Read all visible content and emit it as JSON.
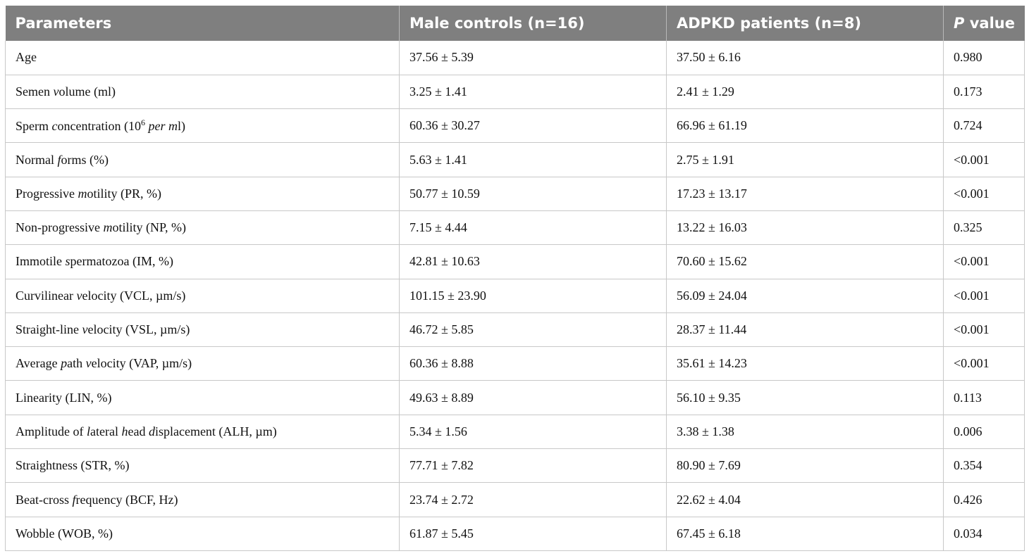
{
  "table": {
    "headers": [
      "Parameters",
      "Male controls (n=16)",
      "ADPKD patients (n=8)",
      "value"
    ],
    "p_header_italic": "P",
    "rows": [
      {
        "parameter": [
          "Age"
        ],
        "controls": "37.56 ± 5.39",
        "patients": "37.50 ± 6.16",
        "p": "0.980"
      },
      {
        "parameter": [
          "Semen ",
          "v",
          "olume (ml)"
        ],
        "controls": "3.25 ± 1.41",
        "patients": "2.41 ± 1.29",
        "p": "0.173"
      },
      {
        "parameter": [
          "Sperm ",
          "c",
          "oncentration (10",
          "6",
          " ",
          "per ml",
          ")"
        ],
        "controls": "60.36 ± 30.27",
        "patients": "66.96 ± 61.19",
        "p": "0.724"
      },
      {
        "parameter": [
          "Normal ",
          "f",
          "orms (%)"
        ],
        "controls": "5.63 ± 1.41",
        "patients": "2.75 ± 1.91",
        "p": "<0.001"
      },
      {
        "parameter": [
          "Progressive ",
          "m",
          "otility (PR, %)"
        ],
        "controls": "50.77 ± 10.59",
        "patients": "17.23 ± 13.17",
        "p": "<0.001"
      },
      {
        "parameter": [
          "Non-progressive ",
          "m",
          "otility (NP, %)"
        ],
        "controls": "7.15 ± 4.44",
        "patients": "13.22 ± 16.03",
        "p": "0.325"
      },
      {
        "parameter": [
          "Immotile ",
          "s",
          "permatozoa (IM, %)"
        ],
        "controls": "42.81 ± 10.63",
        "patients": "70.60 ± 15.62",
        "p": "<0.001"
      },
      {
        "parameter": [
          "Curvilinear ",
          "v",
          "elocity (VCL, µm/s)"
        ],
        "controls": "101.15 ± 23.90",
        "patients": "56.09 ± 24.04",
        "p": "<0.001"
      },
      {
        "parameter": [
          "Straight-line ",
          "v",
          "elocity (VSL, µm/s)"
        ],
        "controls": "46.72 ± 5.85",
        "patients": "28.37 ± 11.44",
        "p": "<0.001"
      },
      {
        "parameter": [
          "Average ",
          "p",
          "ath ",
          "v",
          "elocity (VAP, µm/s)"
        ],
        "controls": "60.36 ± 8.88",
        "patients": "35.61 ± 14.23",
        "p": "<0.001"
      },
      {
        "parameter": [
          "Linearity (LIN, %)"
        ],
        "controls": "49.63 ± 8.89",
        "patients": "56.10 ± 9.35",
        "p": "0.113"
      },
      {
        "parameter": [
          "Amplitude of ",
          "l",
          "ateral ",
          "h",
          "ead ",
          "d",
          "isplacement (ALH, µm)"
        ],
        "controls": "5.34 ± 1.56",
        "patients": "3.38 ± 1.38",
        "p": "0.006"
      },
      {
        "parameter": [
          "Straightness (STR, %)"
        ],
        "controls": "77.71 ± 7.82",
        "patients": "80.90 ± 7.69",
        "p": "0.354"
      },
      {
        "parameter": [
          "Beat-cross ",
          "f",
          "requency (BCF, Hz)"
        ],
        "controls": "23.74 ± 2.72",
        "patients": "22.62 ± 4.04",
        "p": "0.426"
      },
      {
        "parameter": [
          "Wobble (WOB, %)"
        ],
        "controls": "61.87 ± 5.45",
        "patients": "67.45 ± 6.18",
        "p": "0.034"
      }
    ]
  }
}
